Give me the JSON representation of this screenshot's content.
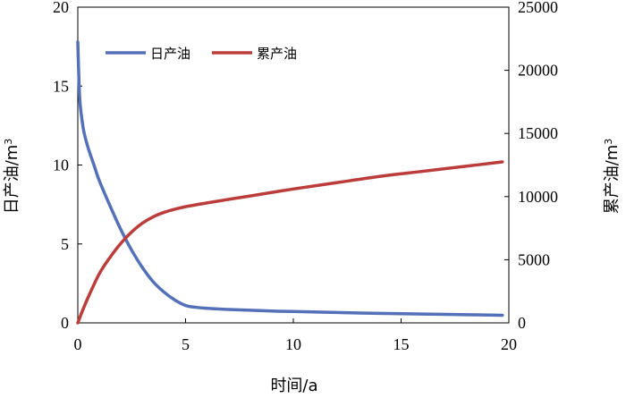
{
  "chart_data": {
    "type": "line",
    "xlabel": "时间/a",
    "ylabel_left": "日产油/m",
    "ylabel_left_sup": "3",
    "ylabel_right": "累产油/m",
    "ylabel_right_sup": "3",
    "xlim": [
      0,
      20
    ],
    "ylim_left": [
      0,
      20
    ],
    "ylim_right": [
      0,
      25000
    ],
    "xticks": [
      "0",
      "5",
      "10",
      "15",
      "20"
    ],
    "yticks_left": [
      "0",
      "5",
      "10",
      "15",
      "20"
    ],
    "yticks_right": [
      "0",
      "5000",
      "10000",
      "15000",
      "20000",
      "25000"
    ],
    "grid": false,
    "legend_position": "top-left",
    "series": [
      {
        "name": "日产油",
        "axis": "left",
        "color": "#5470b8",
        "x": [
          0,
          0.05,
          0.1,
          0.2,
          0.3,
          0.5,
          0.75,
          1,
          1.5,
          2,
          2.5,
          3,
          3.5,
          4,
          4.5,
          5,
          5.5,
          6,
          7,
          8,
          9,
          10,
          12,
          14,
          16,
          18,
          19.7
        ],
        "y": [
          17.8,
          15.5,
          14.0,
          12.8,
          12.0,
          11.0,
          10.0,
          9.0,
          7.4,
          5.9,
          4.6,
          3.5,
          2.6,
          1.95,
          1.45,
          1.1,
          0.98,
          0.92,
          0.85,
          0.8,
          0.75,
          0.72,
          0.66,
          0.6,
          0.56,
          0.52,
          0.48
        ]
      },
      {
        "name": "累产油",
        "axis": "right",
        "color": "#bb3d3b",
        "x": [
          0,
          0.25,
          0.5,
          1,
          1.5,
          2,
          2.5,
          3,
          3.5,
          4,
          4.5,
          5,
          6,
          7,
          8,
          10,
          12,
          14,
          16,
          18,
          19.7
        ],
        "y": [
          0,
          1100,
          2100,
          3900,
          5200,
          6300,
          7200,
          7900,
          8400,
          8750,
          9000,
          9200,
          9500,
          9780,
          10050,
          10600,
          11100,
          11600,
          12000,
          12400,
          12750
        ]
      }
    ]
  }
}
